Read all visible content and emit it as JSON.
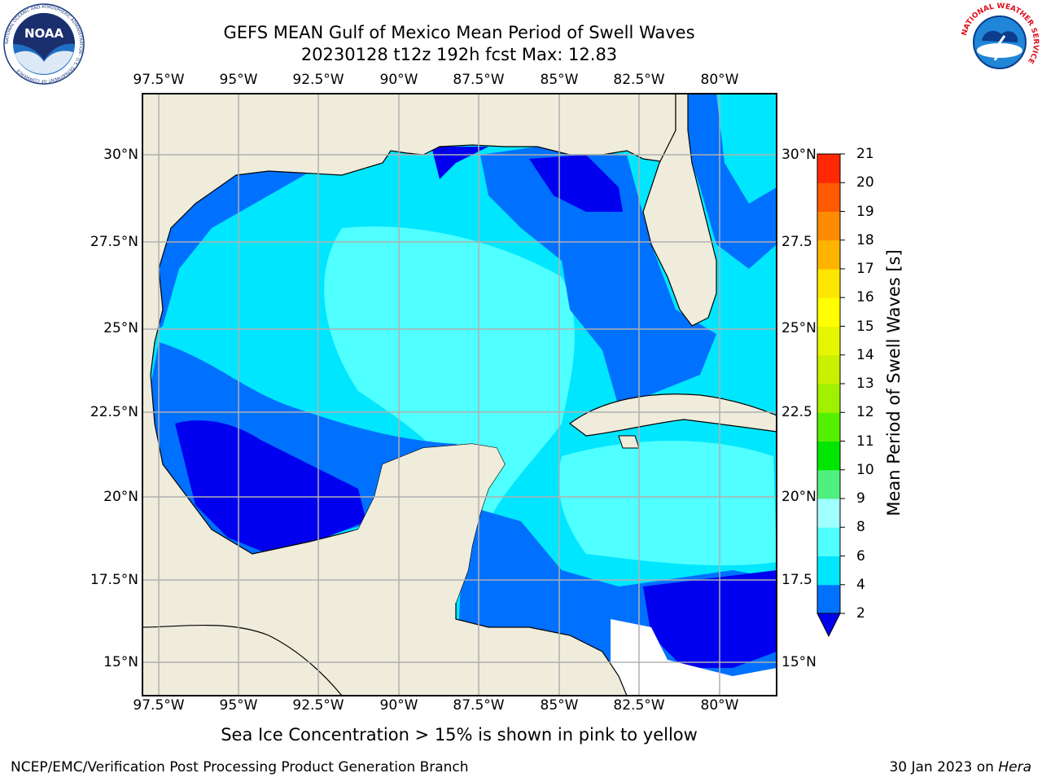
{
  "title_line1": "GEFS MEAN Gulf of Mexico Mean Period of Swell Waves",
  "title_line2": "20230128 t12z 192h fcst   Max: 12.83",
  "lon_ticks": [
    "97.5°W",
    "95°W",
    "92.5°W",
    "90°W",
    "87.5°W",
    "85°W",
    "82.5°W",
    "80°W"
  ],
  "lat_ticks_left": [
    "30°N",
    "27.5°N",
    "25°N",
    "22.5°N",
    "20°N",
    "17.5°N",
    "15°N"
  ],
  "lat_ticks_right": [
    "30°N",
    "27.5",
    "25°N",
    "22.5",
    "20°N",
    "17.5",
    "15°N"
  ],
  "colorbar": {
    "label": "Mean Period of Swell Waves [s]",
    "ticks": [
      "2",
      "4",
      "6",
      "8",
      "9",
      "10",
      "11",
      "12",
      "13",
      "14",
      "15",
      "16",
      "17",
      "18",
      "19",
      "20",
      "21"
    ],
    "colors": [
      "#0070ff",
      "#00e6ff",
      "#50ffff",
      "#a0ffff",
      "#50f080",
      "#00e600",
      "#55f000",
      "#a0f000",
      "#c8f000",
      "#e6f500",
      "#ffff00",
      "#ffe600",
      "#ffb400",
      "#ff8c00",
      "#ff5a00",
      "#ff2800"
    ],
    "under_color": "#0000ee"
  },
  "colors": {
    "land": "#efecdc",
    "ocean_base": "#00e6ff",
    "ocean_light": "#50ffff",
    "ocean_mid": "#0070ff",
    "ocean_deep": "#0000ee",
    "grid": "#b0b0b0"
  },
  "ice_note": "Sea Ice Concentration > 15% is shown in pink to yellow",
  "footer_left": "NCEP/EMC/Verification Post Processing Product Generation Branch",
  "footer_right_date": "30 Jan 2023 on ",
  "footer_right_host": "Hera",
  "logos": {
    "noaa_text": "NOAA",
    "noaa_ring": "NATIONAL OCEANIC AND ATMOSPHERIC ADMINISTRATION · U.S. DEPARTMENT OF COMMERCE",
    "nws_ring": "NATIONAL WEATHER SERVICE"
  }
}
